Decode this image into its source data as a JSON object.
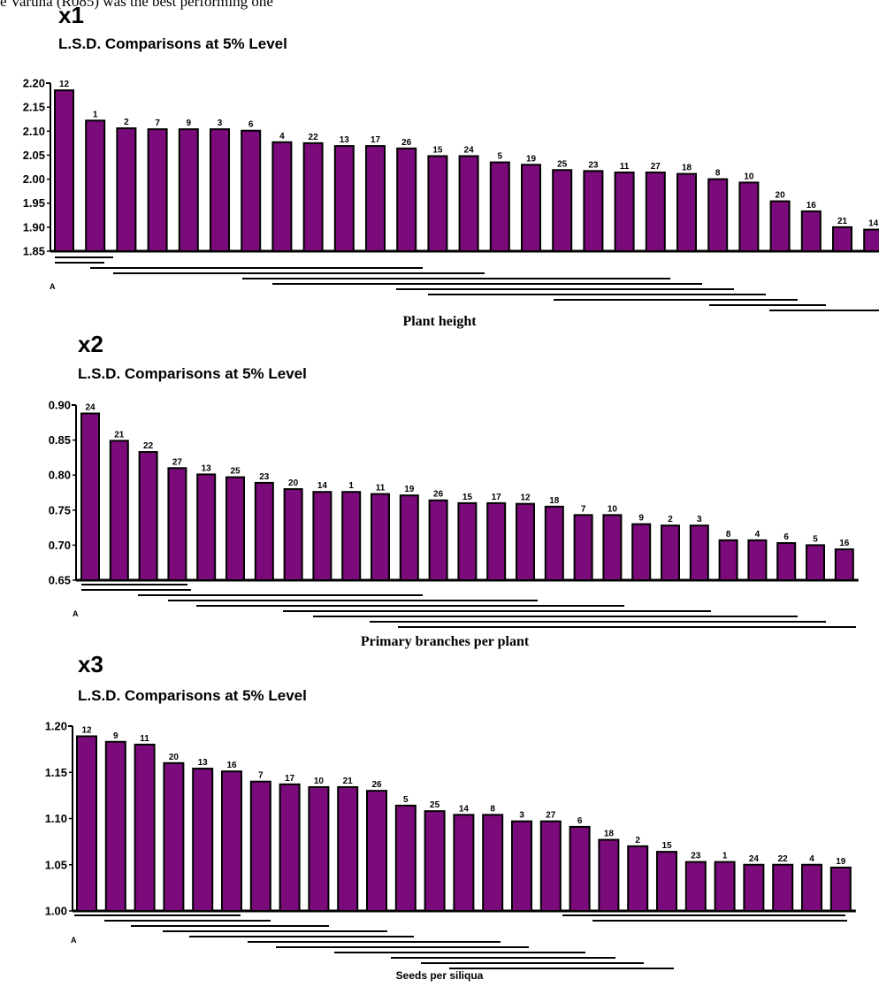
{
  "header_fragment": "e Varuna (R085) was the best performing one",
  "colors": {
    "bar": "#7b0a7b",
    "outline": "#000000"
  },
  "chart_data": [
    {
      "type": "bar",
      "title": "x1",
      "subtitle": "L.S.D. Comparisons at 5% Level",
      "caption": "Plant height",
      "axis_note": "A",
      "ylim": [
        1.85,
        2.2
      ],
      "yticks": [
        "2.20",
        "2.15",
        "2.10",
        "2.05",
        "2.00",
        "1.95",
        "1.90",
        "1.85"
      ],
      "categories": [
        "12",
        "1",
        "2",
        "7",
        "9",
        "3",
        "6",
        "4",
        "22",
        "13",
        "17",
        "26",
        "15",
        "24",
        "5",
        "19",
        "25",
        "23",
        "11",
        "27",
        "18",
        "8",
        "10",
        "20",
        "16",
        "21",
        "14"
      ],
      "values": [
        2.185,
        2.122,
        2.106,
        2.104,
        2.104,
        2.104,
        2.101,
        2.077,
        2.075,
        2.069,
        2.069,
        2.064,
        2.048,
        2.048,
        2.035,
        2.03,
        2.019,
        2.017,
        2.014,
        2.014,
        2.011,
        2.0,
        1.993,
        1.954,
        1.933,
        1.9,
        1.895
      ]
    },
    {
      "type": "bar",
      "title": "x2",
      "subtitle": "L.S.D. Comparisons at 5% Level",
      "caption": "Primary branches per plant",
      "axis_note": "A",
      "ylim": [
        0.65,
        0.9
      ],
      "yticks": [
        "0.90",
        "0.85",
        "0.80",
        "0.75",
        "0.70",
        "0.65"
      ],
      "categories": [
        "24",
        "21",
        "22",
        "27",
        "13",
        "25",
        "23",
        "20",
        "14",
        "1",
        "11",
        "19",
        "26",
        "15",
        "17",
        "12",
        "18",
        "7",
        "10",
        "9",
        "2",
        "3",
        "8",
        "4",
        "6",
        "5",
        "16"
      ],
      "values": [
        0.888,
        0.849,
        0.833,
        0.81,
        0.801,
        0.797,
        0.789,
        0.78,
        0.776,
        0.776,
        0.773,
        0.771,
        0.764,
        0.76,
        0.76,
        0.759,
        0.755,
        0.743,
        0.743,
        0.73,
        0.728,
        0.728,
        0.707,
        0.707,
        0.703,
        0.7,
        0.694
      ]
    },
    {
      "type": "bar",
      "title": "x3",
      "subtitle": "L.S.D. Comparisons at 5% Level",
      "caption": "Seeds per siliqua",
      "axis_note": "A",
      "ylim": [
        1.0,
        1.2
      ],
      "yticks": [
        "1.20",
        "1.15",
        "1.10",
        "1.05",
        "1.00"
      ],
      "categories": [
        "12",
        "9",
        "11",
        "20",
        "13",
        "16",
        "7",
        "17",
        "10",
        "21",
        "26",
        "5",
        "25",
        "14",
        "8",
        "3",
        "27",
        "6",
        "18",
        "2",
        "15",
        "23",
        "1",
        "24",
        "22",
        "4",
        "19"
      ],
      "values": [
        1.189,
        1.183,
        1.18,
        1.16,
        1.154,
        1.151,
        1.14,
        1.137,
        1.134,
        1.134,
        1.13,
        1.114,
        1.108,
        1.104,
        1.104,
        1.097,
        1.097,
        1.091,
        1.077,
        1.07,
        1.064,
        1.053,
        1.053,
        1.05,
        1.05,
        1.05,
        1.047
      ]
    }
  ]
}
